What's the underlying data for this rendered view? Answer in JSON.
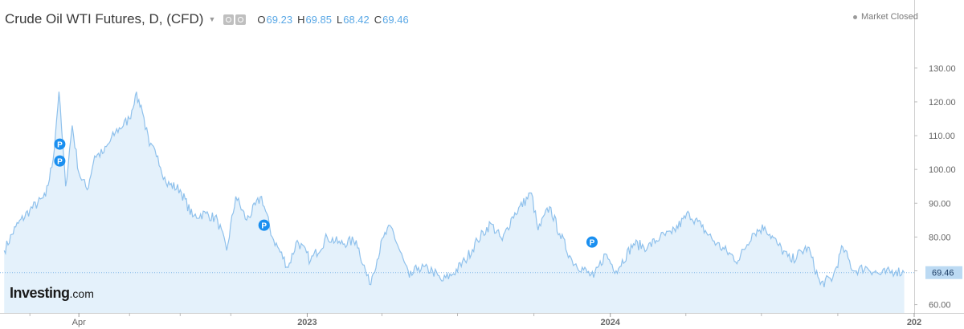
{
  "header": {
    "title": "Crude Oil WTI Futures, D, (CFD)",
    "caret_icon": "caret-down-icon",
    "settings_icons": [
      "settings-icon",
      "gear-icon"
    ],
    "ohlc": [
      {
        "key": "O",
        "value": "69.23"
      },
      {
        "key": "H",
        "value": "69.85"
      },
      {
        "key": "L",
        "value": "68.42"
      },
      {
        "key": "C",
        "value": "69.46"
      }
    ],
    "market_status": "Market Closed"
  },
  "logo": {
    "main": "Investing",
    "domain": ".com"
  },
  "colors": {
    "line": "#8fc1ec",
    "fill": "#e4f1fb",
    "accent": "#1a8ff0",
    "price_label_bg": "#bcdaf3",
    "axis_text": "#666666"
  },
  "chart_data": {
    "type": "area",
    "title": "Crude Oil WTI Futures, D, (CFD)",
    "xlabel": "",
    "ylabel": "",
    "ylim": [
      58,
      134
    ],
    "x_ticks": [
      "Apr",
      "2023",
      "2024",
      "202"
    ],
    "y_ticks": [
      60,
      70,
      80,
      90,
      100,
      110,
      120,
      130
    ],
    "y_tick_labels": [
      "60.00",
      "70.00",
      "80.00",
      "90.00",
      "100.00",
      "110.00",
      "120.00",
      "130.00"
    ],
    "last_price": 69.46,
    "last_price_label": "69.46",
    "series": [
      {
        "points": [
          [
            "2022-01-01",
            76
          ],
          [
            "2022-01-15",
            83
          ],
          [
            "2022-02-01",
            88
          ],
          [
            "2022-02-20",
            92
          ],
          [
            "2022-03-01",
            103
          ],
          [
            "2022-03-08",
            123
          ],
          [
            "2022-03-16",
            95
          ],
          [
            "2022-03-24",
            113
          ],
          [
            "2022-04-01",
            99
          ],
          [
            "2022-04-11",
            94
          ],
          [
            "2022-04-20",
            104
          ],
          [
            "2022-05-01",
            105
          ],
          [
            "2022-05-15",
            111
          ],
          [
            "2022-06-01",
            115
          ],
          [
            "2022-06-08",
            122
          ],
          [
            "2022-06-15",
            119
          ],
          [
            "2022-06-25",
            107
          ],
          [
            "2022-07-05",
            104
          ],
          [
            "2022-07-15",
            96
          ],
          [
            "2022-08-01",
            94
          ],
          [
            "2022-08-16",
            86
          ],
          [
            "2022-09-01",
            87
          ],
          [
            "2022-09-15",
            85
          ],
          [
            "2022-09-26",
            76
          ],
          [
            "2022-10-07",
            92
          ],
          [
            "2022-10-20",
            85
          ],
          [
            "2022-11-07",
            92
          ],
          [
            "2022-11-20",
            80
          ],
          [
            "2022-12-09",
            71
          ],
          [
            "2022-12-20",
            79
          ],
          [
            "2023-01-05",
            73
          ],
          [
            "2023-01-25",
            80
          ],
          [
            "2023-02-10",
            78
          ],
          [
            "2023-03-01",
            79
          ],
          [
            "2023-03-17",
            66
          ],
          [
            "2023-04-03",
            80
          ],
          [
            "2023-04-12",
            83
          ],
          [
            "2023-05-04",
            68
          ],
          [
            "2023-05-15",
            71
          ],
          [
            "2023-06-01",
            70
          ],
          [
            "2023-06-12",
            67
          ],
          [
            "2023-06-25",
            69
          ],
          [
            "2023-07-10",
            73
          ],
          [
            "2023-07-25",
            79
          ],
          [
            "2023-08-10",
            84
          ],
          [
            "2023-08-24",
            79
          ],
          [
            "2023-09-05",
            86
          ],
          [
            "2023-09-28",
            93
          ],
          [
            "2023-10-06",
            82
          ],
          [
            "2023-10-20",
            89
          ],
          [
            "2023-11-01",
            81
          ],
          [
            "2023-11-16",
            73
          ],
          [
            "2023-12-12",
            68
          ],
          [
            "2023-12-26",
            75
          ],
          [
            "2024-01-08",
            70
          ],
          [
            "2024-01-29",
            78
          ],
          [
            "2024-02-15",
            77
          ],
          [
            "2024-03-01",
            80
          ],
          [
            "2024-03-15",
            81
          ],
          [
            "2024-04-05",
            87
          ],
          [
            "2024-04-20",
            83
          ],
          [
            "2024-05-08",
            78
          ],
          [
            "2024-06-03",
            73
          ],
          [
            "2024-06-20",
            81
          ],
          [
            "2024-07-05",
            83
          ],
          [
            "2024-07-20",
            78
          ],
          [
            "2024-08-05",
            73
          ],
          [
            "2024-08-26",
            77
          ],
          [
            "2024-09-10",
            66
          ],
          [
            "2024-09-25",
            68
          ],
          [
            "2024-10-07",
            77
          ],
          [
            "2024-10-20",
            70
          ],
          [
            "2024-11-05",
            71
          ],
          [
            "2024-11-20",
            69
          ],
          [
            "2024-12-10",
            70
          ],
          [
            "2024-12-20",
            69.46
          ]
        ]
      }
    ],
    "markers": [
      {
        "label": "P",
        "date": "2022-03-09",
        "y": 107.5
      },
      {
        "label": "P",
        "date": "2022-03-09",
        "y": 102.5
      },
      {
        "label": "P",
        "date": "2022-11-10",
        "y": 83.5
      },
      {
        "label": "P",
        "date": "2023-12-10",
        "y": 78.5
      }
    ],
    "grid": false,
    "legend": "none"
  }
}
